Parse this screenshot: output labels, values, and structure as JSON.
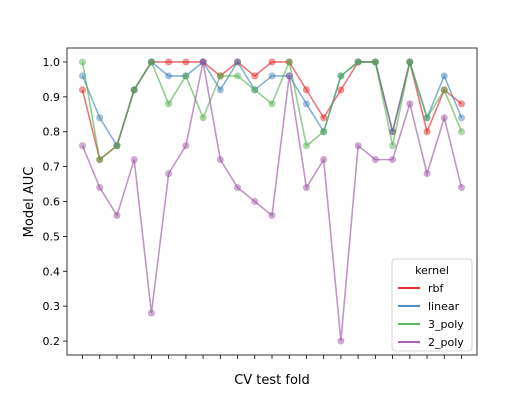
{
  "chart_data": {
    "type": "line",
    "xlabel": "CV test fold",
    "ylabel": "Model AUC",
    "ylim": [
      0.16,
      1.04
    ],
    "yticks": [
      0.2,
      0.3,
      0.4,
      0.5,
      0.6,
      0.7,
      0.8,
      0.9,
      1.0
    ],
    "ytick_labels": [
      "0.2",
      "0.3",
      "0.4",
      "0.5",
      "0.6",
      "0.7",
      "0.8",
      "0.9",
      "1.0"
    ],
    "x": [
      1,
      2,
      3,
      4,
      5,
      6,
      7,
      8,
      9,
      10,
      11,
      12,
      13,
      14,
      15,
      16,
      17,
      18,
      19,
      20,
      21,
      22,
      23
    ],
    "grid": false,
    "legend": {
      "title": "kernel",
      "placement": "bottom-right"
    },
    "series": [
      {
        "name": "rbf",
        "color": "#e41a1c",
        "values": [
          0.92,
          0.72,
          0.76,
          0.92,
          1.0,
          1.0,
          1.0,
          1.0,
          0.96,
          1.0,
          0.96,
          1.0,
          1.0,
          0.92,
          0.84,
          0.92,
          1.0,
          1.0,
          0.8,
          1.0,
          0.8,
          0.92,
          0.88
        ]
      },
      {
        "name": "linear",
        "color": "#377eb8",
        "values": [
          0.96,
          0.84,
          0.76,
          0.92,
          1.0,
          0.96,
          0.96,
          1.0,
          0.92,
          1.0,
          0.92,
          0.96,
          0.96,
          0.88,
          0.8,
          0.96,
          1.0,
          1.0,
          0.8,
          1.0,
          0.84,
          0.96,
          0.84
        ]
      },
      {
        "name": "3_poly",
        "color": "#4daf4a",
        "values": [
          1.0,
          0.72,
          0.76,
          0.92,
          1.0,
          0.88,
          0.96,
          0.84,
          0.96,
          0.96,
          0.92,
          0.88,
          1.0,
          0.76,
          0.8,
          0.96,
          1.0,
          1.0,
          0.76,
          1.0,
          0.84,
          0.92,
          0.8
        ]
      },
      {
        "name": "2_poly",
        "color": "#984ea3",
        "values": [
          0.76,
          0.64,
          0.56,
          0.72,
          0.28,
          0.68,
          0.76,
          1.0,
          0.72,
          0.64,
          0.6,
          0.56,
          0.96,
          0.64,
          0.72,
          0.2,
          0.76,
          0.72,
          0.72,
          0.88,
          0.68,
          0.84,
          0.64
        ]
      }
    ]
  }
}
